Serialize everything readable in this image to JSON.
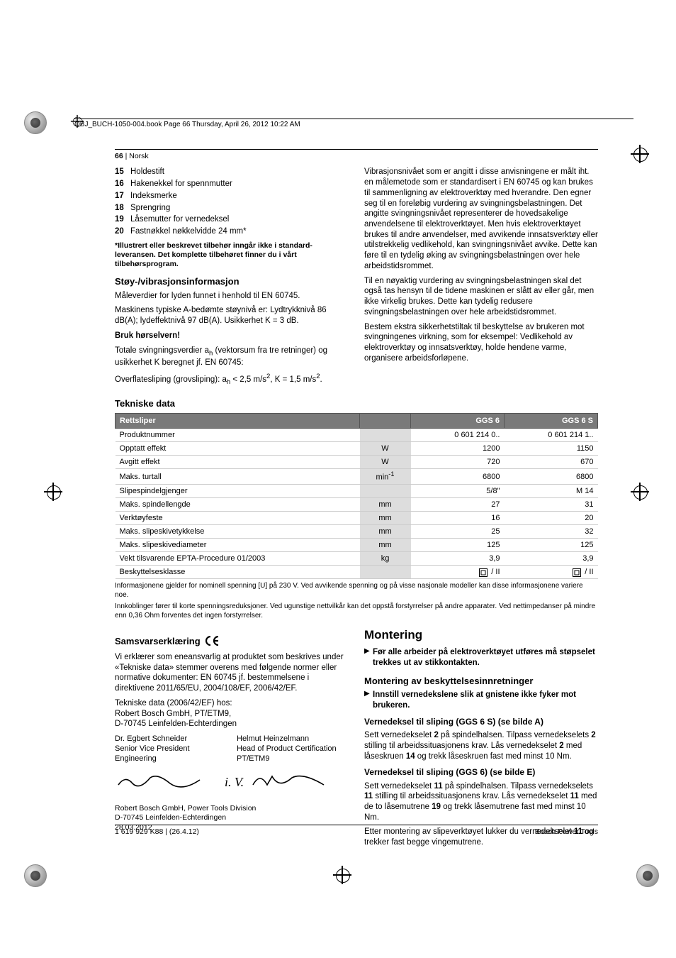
{
  "header_text": "OBJ_BUCH-1050-004.book  Page 66  Thursday, April 26, 2012  10:22 AM",
  "page_label_num": "66",
  "page_label_lang": "| Norsk",
  "parts": [
    {
      "n": "15",
      "t": "Holdestift"
    },
    {
      "n": "16",
      "t": "Hakenekkel for spennmutter"
    },
    {
      "n": "17",
      "t": "Indeksmerke"
    },
    {
      "n": "18",
      "t": "Sprengring"
    },
    {
      "n": "19",
      "t": "Låsemutter for vernedeksel"
    },
    {
      "n": "20",
      "t": "Fastnøkkel nøkkelvidde 24 mm*"
    }
  ],
  "asterisk_note": "*Illustrert eller beskrevet tilbehør inngår ikke i standard-leveransen. Det komplette tilbehøret finner du i vårt tilbehørsprogram.",
  "noise_h": "Støy-/vibrasjonsinformasjon",
  "noise_p1": "Måleverdier for lyden funnet i henhold til EN 60745.",
  "noise_p2": "Maskinens typiske A-bedømte støynivå er: Lydtrykknivå 86 dB(A); lydeffektnivå 97 dB(A). Usikkerhet K = 3 dB.",
  "noise_bold": "Bruk hørselvern!",
  "noise_p3": "Totale svingningsverdier a<sub>h</sub> (vektorsum fra tre retninger) og usikkerhet K beregnet jf. EN 60745:",
  "noise_p4": "Overflatesliping (grovsliping): a<sub>h</sub> < 2,5 m/s<sup>2</sup>, K = 1,5 m/s<sup>2</sup>.",
  "vib_p1": "Vibrasjonsnivået som er angitt i disse anvisningene er målt iht. en målemetode som er standardisert i EN 60745 og kan brukes til sammenligning av elektroverktøy med hverandre. Den egner seg til en foreløbig vurdering av svingningsbelastningen. Det angitte svingningsnivået representerer de hovedsakelige anvendelsene til elektroverktøyet. Men hvis elektroverktøyet brukes til andre anvendelser, med avvikende innsatsverktøy eller utilstrekkelig vedlikehold, kan svingningsnivået avvike. Dette kan føre til en tydelig øking av svingningsbelastningen over hele arbeidstidsrommet.",
  "vib_p2": "Til en nøyaktig vurdering av svingningsbelastningen skal det også tas hensyn til de tidene maskinen er slått av eller går, men ikke virkelig brukes. Dette kan tydelig redusere svingningsbelastningen over hele arbeidstidsrommet.",
  "vib_p3": "Bestem ekstra sikkerhetstiltak til beskyttelse av brukeren mot svingningenes virkning, som for eksempel: Vedlikehold av elektroverktøy og innsatsverktøy, holde hendene varme, organisere arbeidsforløpene.",
  "tech_h": "Tekniske data",
  "table": {
    "head": [
      "Rettsliper",
      "",
      "GGS 6",
      "GGS 6 S"
    ],
    "rows": [
      [
        "Produktnummer",
        "",
        "0 601 214 0..",
        "0 601 214 1.."
      ],
      [
        "Opptatt effekt",
        "W",
        "1200",
        "1150"
      ],
      [
        "Avgitt effekt",
        "W",
        "720",
        "670"
      ],
      [
        "Maks. turtall",
        "min<sup>-1</sup>",
        "6800",
        "6800"
      ],
      [
        "Slipespindelgjenger",
        "",
        "5/8\"",
        "M 14"
      ],
      [
        "Maks. spindellengde",
        "mm",
        "27",
        "31"
      ],
      [
        "Verktøyfeste",
        "mm",
        "16",
        "20"
      ],
      [
        "Maks. slipeskivetykkelse",
        "mm",
        "25",
        "32"
      ],
      [
        "Maks. slipeskivediameter",
        "mm",
        "125",
        "125"
      ],
      [
        "Vekt tilsvarende EPTA-Procedure 01/2003",
        "kg",
        "3,9",
        "3,9"
      ],
      [
        "Beskyttelsesklasse",
        "",
        "CLASS2",
        "CLASS2"
      ]
    ]
  },
  "table_note1": "Informasjonene gjelder for nominell spenning [U] på 230 V. Ved avvikende spenning og på visse nasjonale modeller kan disse informasjonene variere noe.",
  "table_note2": "Innkoblinger fører til korte spenningsreduksjoner. Ved ugunstige nettvilkår kan det oppstå forstyrrelser på andre apparater. Ved nettimpedanser på mindre enn 0,36 Ohm forventes det ingen forstyrrelser.",
  "decl_h": "Samsvarserklæring",
  "decl_p1": "Vi erklærer som eneansvarlig at produktet som beskrives under «Tekniske data» stemmer overens med følgende normer eller normative dokumenter: EN 60745 jf. bestemmelsene i direktivene 2011/65/EU, 2004/108/EF, 2006/42/EF.",
  "decl_p2": "Tekniske data (2006/42/EF) hos:\nRobert Bosch GmbH, PT/ETM9,\nD-70745 Leinfelden-Echterdingen",
  "sig1_n": "Dr. Egbert Schneider",
  "sig1_t": "Senior Vice President",
  "sig1_d": "Engineering",
  "sig2_n": "Helmut Heinzelmann",
  "sig2_t": "Head of Product Certification",
  "sig2_d": "PT/ETM9",
  "decl_addr": "Robert Bosch GmbH, Power Tools Division\nD-70745 Leinfelden-Echterdingen\n28.03.2012",
  "mount_h": "Montering",
  "mount_bullet1": "Før alle arbeider på elektroverktøyet utføres må støpselet trekkes ut av stikkontakten.",
  "mount_sub1": "Montering av beskyttelsesinnretninger",
  "mount_bullet2": "Innstill vernedekslene slik at gnistene ikke fyker mot brukeren.",
  "mount_sub2": "Vernedeksel til sliping (GGS 6 S) (se bilde A)",
  "mount_p1": "Sett vernedekselet <b>2</b> på spindelhalsen. Tilpass vernedekselets <b>2</b> stilling til arbeidssituasjonens krav. Lås vernedekselet <b>2</b> med låseskruen <b>14</b> og trekk låseskruen fast med minst 10 Nm.",
  "mount_sub3": "Vernedeksel til sliping (GGS 6) (se bilde E)",
  "mount_p2": "Sett vernedekselet <b>11</b> på spindelhalsen. Tilpass vernedekselets <b>11</b> stilling til arbeidssituasjonens krav. Lås vernedekselet <b>11</b> med de to låsemutrene <b>19</b> og trekk låsemutrene fast med minst 10 Nm.",
  "mount_p3": "Etter montering av slipeverktøyet lukker du vernedekselet <b>11</b> og trekker fast begge vingemutrene.",
  "footer_left": "1 619 929 K88 | (26.4.12)",
  "footer_right": "Bosch Power Tools"
}
